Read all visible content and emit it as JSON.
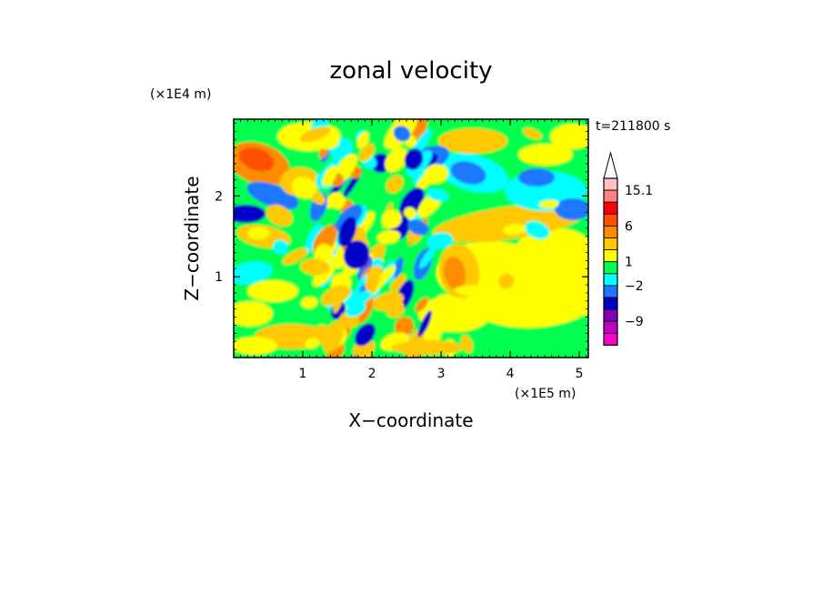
{
  "chart_data": {
    "type": "heatmap",
    "title": "zonal velocity",
    "xlabel": "X−coordinate",
    "ylabel": "Z−coordinate",
    "x_multiplier": "(×1E5 m)",
    "y_multiplier": "(×1E4 m)",
    "time_label": "t=211800 s",
    "xlim": [
      0,
      5.13
    ],
    "ylim": [
      0,
      2.95
    ],
    "x_ticks": [
      1,
      2,
      3,
      4,
      5
    ],
    "x_tick_labels": [
      "1",
      "2",
      "3",
      "4",
      "5"
    ],
    "y_ticks": [
      1,
      2
    ],
    "y_tick_labels": [
      "1",
      "2"
    ],
    "colorbar": {
      "levels_top_to_bottom": [
        {
          "color": "#ffffff",
          "extend": "max"
        },
        {
          "color": "#ffc0c0"
        },
        {
          "color": "#ff8080"
        },
        {
          "color": "#ff0000"
        },
        {
          "color": "#ff5000"
        },
        {
          "color": "#ff8c00"
        },
        {
          "color": "#ffc800"
        },
        {
          "color": "#ffff00"
        },
        {
          "color": "#00ff50"
        },
        {
          "color": "#00ffff"
        },
        {
          "color": "#1e78ff"
        },
        {
          "color": "#0000c8"
        },
        {
          "color": "#8000b4"
        },
        {
          "color": "#c000c0"
        },
        {
          "color": "#ff00c8"
        }
      ],
      "labels": [
        {
          "text": "15.1",
          "after_level": 1
        },
        {
          "text": "6",
          "after_level": 4
        },
        {
          "text": "1",
          "after_level": 7
        },
        {
          "text": "−2",
          "after_level": 9
        },
        {
          "text": "−9",
          "after_level": 12
        }
      ]
    },
    "field_description_colors": {
      "background": "#00ff50",
      "positive_weak": "#ffff00",
      "positive_mid": "#ffc800",
      "positive_strong": "#ff8c00",
      "negative_weak": "#00ffff",
      "negative_mid": "#1e78ff",
      "negative_strong": "#0000c8",
      "negative_extreme": "#8000b4"
    }
  }
}
